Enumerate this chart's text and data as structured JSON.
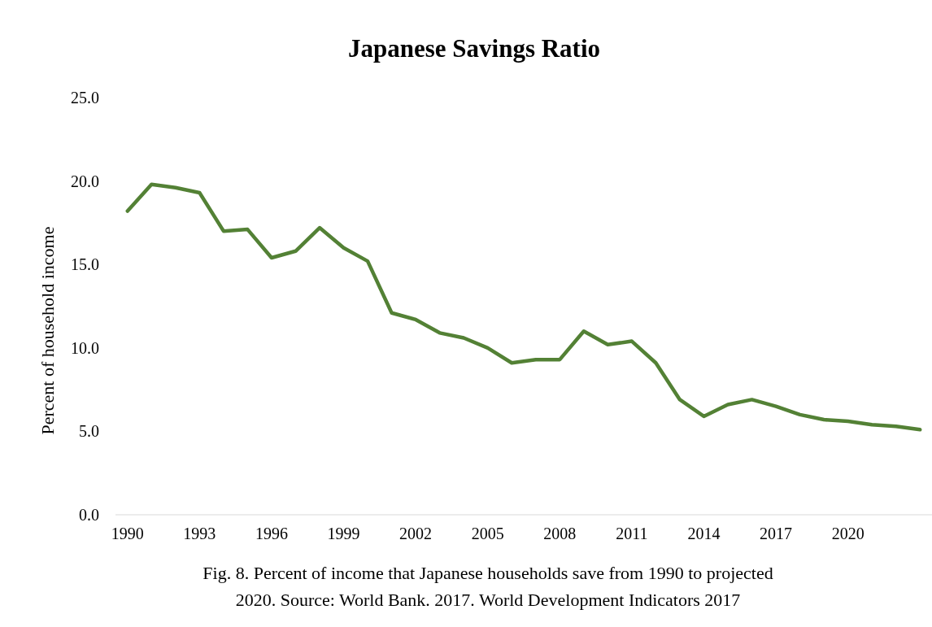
{
  "chart_data": {
    "type": "line",
    "title": "Japanese Savings Ratio",
    "ylabel": "Percent of household  income",
    "categories": [
      "1990",
      null,
      null,
      "1993",
      null,
      null,
      "1996",
      null,
      null,
      "1999",
      null,
      null,
      "2002",
      null,
      null,
      "2005",
      null,
      null,
      "2008",
      null,
      null,
      "2011",
      null,
      null,
      "2014",
      null,
      null,
      "2017",
      null,
      null,
      "2020",
      null,
      null,
      null
    ],
    "series": [
      {
        "color": "#538135",
        "values": [
          18.2,
          19.8,
          19.6,
          19.3,
          17.0,
          17.1,
          15.4,
          15.8,
          17.2,
          16.0,
          15.2,
          12.1,
          11.7,
          10.9,
          10.6,
          10.0,
          9.1,
          9.3,
          9.3,
          11.0,
          10.2,
          10.4,
          9.1,
          6.9,
          5.9,
          6.6,
          6.9,
          6.5,
          6.0,
          5.7,
          5.6,
          5.4,
          5.3,
          5.1
        ]
      }
    ],
    "ylim": [
      0,
      25
    ],
    "yticks": [
      {
        "value": 0,
        "label": "0.0"
      },
      {
        "value": 5,
        "label": "5.0"
      },
      {
        "value": 10,
        "label": "10.0"
      },
      {
        "value": 15,
        "label": "15.0"
      },
      {
        "value": 20,
        "label": "20.0"
      },
      {
        "value": 25,
        "label": "25.0"
      }
    ],
    "grid": false,
    "marker": "none",
    "line_style": "solid",
    "annotations": [
      "Fig. 8. Percent of income that Japanese households save from 1990 to projected",
      "2020. Source: World Bank. 2017. World Development Indicators 2017"
    ]
  }
}
